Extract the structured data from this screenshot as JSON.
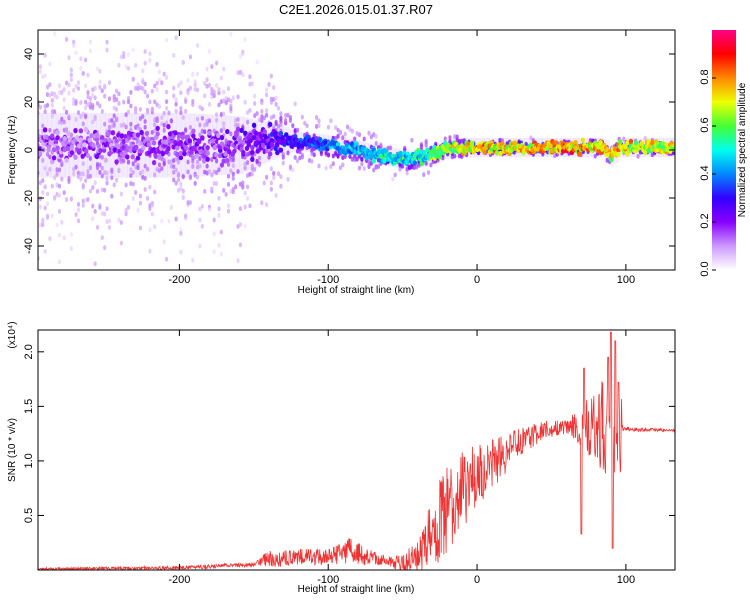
{
  "chart_data": [
    {
      "type": "heatmap",
      "title": "C2E1.2026.015.01.37.R07",
      "xlabel": "Height of straight line (km)",
      "ylabel": "Frequency (Hz)",
      "xlim": [
        -295,
        133
      ],
      "ylim": [
        -50,
        50
      ],
      "xticks": [
        "-200",
        "-100",
        "0",
        "100"
      ],
      "yticks": [
        "-40",
        "-20",
        "0",
        "20",
        "40"
      ],
      "colorbar": {
        "label": "Normalized spectral amplitude",
        "range": [
          0.0,
          1.0
        ],
        "ticks": [
          "0.0",
          "0.2",
          "0.4",
          "0.6",
          "0.8"
        ],
        "colormap": [
          "#ffffff",
          "#cc99ff",
          "#8800ff",
          "#3300ff",
          "#0088ff",
          "#00ffee",
          "#44ff33",
          "#eeff00",
          "#ff8800",
          "#ff0000",
          "#ff0088"
        ]
      },
      "ridge_centerline": [
        {
          "x": -295,
          "y": 2
        },
        {
          "x": -250,
          "y": 2
        },
        {
          "x": -200,
          "y": 2
        },
        {
          "x": -160,
          "y": 2
        },
        {
          "x": -130,
          "y": 4
        },
        {
          "x": -110,
          "y": 3
        },
        {
          "x": -90,
          "y": 1
        },
        {
          "x": -75,
          "y": -1
        },
        {
          "x": -60,
          "y": -3
        },
        {
          "x": -45,
          "y": -4
        },
        {
          "x": -35,
          "y": -3
        },
        {
          "x": -25,
          "y": 0
        },
        {
          "x": -15,
          "y": 1
        },
        {
          "x": 0,
          "y": 1
        },
        {
          "x": 50,
          "y": 1
        },
        {
          "x": 85,
          "y": 1
        },
        {
          "x": 90,
          "y": -3
        },
        {
          "x": 95,
          "y": 1
        },
        {
          "x": 133,
          "y": 1
        }
      ],
      "ridge_amplitude": [
        {
          "x": -295,
          "v": 0.2
        },
        {
          "x": -160,
          "v": 0.25
        },
        {
          "x": -120,
          "v": 0.4
        },
        {
          "x": -80,
          "v": 0.55
        },
        {
          "x": -40,
          "v": 0.6
        },
        {
          "x": -20,
          "v": 0.75
        },
        {
          "x": 0,
          "v": 0.85
        },
        {
          "x": 60,
          "v": 0.9
        },
        {
          "x": 133,
          "v": 0.75
        }
      ],
      "noise_spread_hz": [
        {
          "x": -295,
          "s": 45
        },
        {
          "x": -200,
          "s": 45
        },
        {
          "x": -160,
          "s": 40
        },
        {
          "x": -120,
          "s": 12
        },
        {
          "x": -80,
          "s": 8
        },
        {
          "x": -30,
          "s": 6
        },
        {
          "x": 0,
          "s": 3
        },
        {
          "x": 133,
          "s": 3
        }
      ]
    },
    {
      "type": "line",
      "xlabel": "Height of straight line (km)",
      "ylabel": "SNR (10 * v/v)",
      "multiplier": "(x10⁴)",
      "xlim": [
        -295,
        133
      ],
      "ylim": [
        0,
        2.2
      ],
      "xticks": [
        "-200",
        "-100",
        "0",
        "100"
      ],
      "yticks": [
        "0.5",
        "1.0",
        "1.5",
        "2.0"
      ],
      "color": "#ee3333",
      "baseline": [
        {
          "x": -295,
          "y": 0.01
        },
        {
          "x": -200,
          "y": 0.02
        },
        {
          "x": -150,
          "y": 0.05
        },
        {
          "x": -140,
          "y": 0.1
        },
        {
          "x": -120,
          "y": 0.12
        },
        {
          "x": -100,
          "y": 0.12
        },
        {
          "x": -85,
          "y": 0.18
        },
        {
          "x": -75,
          "y": 0.12
        },
        {
          "x": -60,
          "y": 0.08
        },
        {
          "x": -50,
          "y": 0.05
        },
        {
          "x": -40,
          "y": 0.12
        },
        {
          "x": -30,
          "y": 0.35
        },
        {
          "x": -20,
          "y": 0.55
        },
        {
          "x": -10,
          "y": 0.75
        },
        {
          "x": 0,
          "y": 0.85
        },
        {
          "x": 10,
          "y": 0.98
        },
        {
          "x": 20,
          "y": 1.08
        },
        {
          "x": 30,
          "y": 1.18
        },
        {
          "x": 45,
          "y": 1.28
        },
        {
          "x": 60,
          "y": 1.31
        },
        {
          "x": 70,
          "y": 1.32
        },
        {
          "x": 85,
          "y": 1.33
        },
        {
          "x": 96,
          "y": 1.3
        },
        {
          "x": 100,
          "y": 1.29
        },
        {
          "x": 133,
          "y": 1.28
        }
      ],
      "noise_amplitude": [
        {
          "x": -295,
          "a": 0.01
        },
        {
          "x": -150,
          "a": 0.02
        },
        {
          "x": -140,
          "a": 0.08
        },
        {
          "x": -100,
          "a": 0.07
        },
        {
          "x": -85,
          "a": 0.12
        },
        {
          "x": -60,
          "a": 0.04
        },
        {
          "x": -40,
          "a": 0.15
        },
        {
          "x": -30,
          "a": 0.35
        },
        {
          "x": -20,
          "a": 0.45
        },
        {
          "x": 0,
          "a": 0.3
        },
        {
          "x": 30,
          "a": 0.12
        },
        {
          "x": 60,
          "a": 0.06
        },
        {
          "x": 70,
          "a": 0.2
        },
        {
          "x": 96,
          "a": 0.6
        },
        {
          "x": 98,
          "a": 0.02
        },
        {
          "x": 133,
          "a": 0.01
        }
      ],
      "peaks": [
        {
          "x": 70,
          "y": 0.33
        },
        {
          "x": 72,
          "y": 1.85
        },
        {
          "x": 88,
          "y": 1.95
        },
        {
          "x": 90,
          "y": 2.18
        },
        {
          "x": 91,
          "y": 0.2
        },
        {
          "x": 93,
          "y": 2.1
        },
        {
          "x": 95,
          "y": 1.72
        }
      ]
    }
  ]
}
